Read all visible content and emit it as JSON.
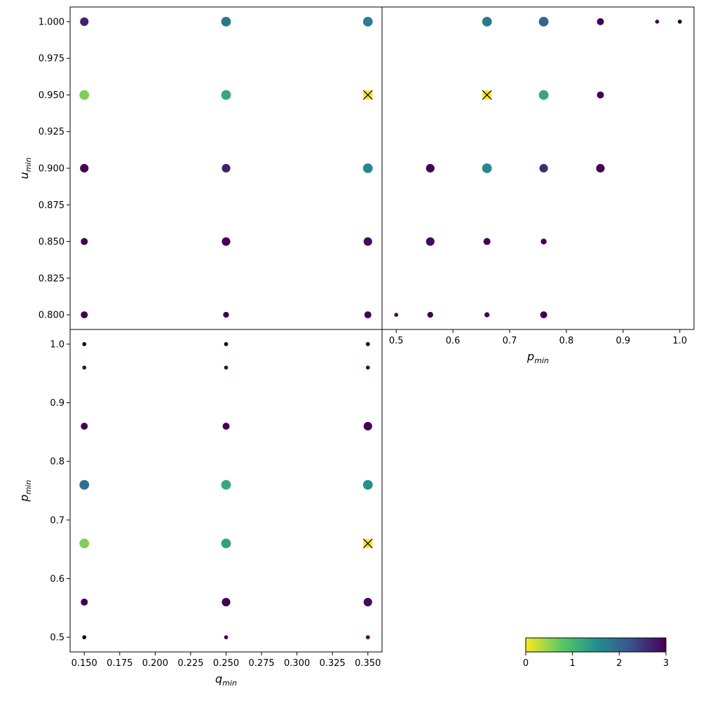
{
  "chart_data": [
    {
      "type": "scatter",
      "panel": "top-left",
      "xlabel": "",
      "ylabel": {
        "base": "u",
        "sub": "min"
      },
      "xlim": [
        0.14,
        0.36
      ],
      "ylim": [
        0.79,
        1.01
      ],
      "xticks": [],
      "yticks": [
        "0.800",
        "0.825",
        "0.850",
        "0.875",
        "0.900",
        "0.925",
        "0.950",
        "0.975",
        "1.000"
      ],
      "points": [
        {
          "x": 0.15,
          "y": 1.0,
          "c": 2.7,
          "s": 1.7
        },
        {
          "x": 0.25,
          "y": 1.0,
          "c": 1.8,
          "s": 2.0
        },
        {
          "x": 0.35,
          "y": 1.0,
          "c": 1.7,
          "s": 2.0
        },
        {
          "x": 0.15,
          "y": 0.95,
          "c": 0.6,
          "s": 2.0
        },
        {
          "x": 0.25,
          "y": 0.95,
          "c": 1.2,
          "s": 2.0
        },
        {
          "x": 0.35,
          "y": 0.95,
          "c": 0.0,
          "s": 2.0,
          "best": true
        },
        {
          "x": 0.15,
          "y": 0.9,
          "c": 3.0,
          "s": 1.7
        },
        {
          "x": 0.25,
          "y": 0.9,
          "c": 2.7,
          "s": 1.7
        },
        {
          "x": 0.35,
          "y": 0.9,
          "c": 1.6,
          "s": 2.0
        },
        {
          "x": 0.15,
          "y": 0.85,
          "c": 3.0,
          "s": 1.3
        },
        {
          "x": 0.25,
          "y": 0.85,
          "c": 3.0,
          "s": 1.7
        },
        {
          "x": 0.35,
          "y": 0.85,
          "c": 2.9,
          "s": 1.7
        },
        {
          "x": 0.15,
          "y": 0.8,
          "c": 3.0,
          "s": 1.3
        },
        {
          "x": 0.25,
          "y": 0.8,
          "c": 3.0,
          "s": 1.0
        },
        {
          "x": 0.35,
          "y": 0.8,
          "c": 3.0,
          "s": 1.3
        }
      ]
    },
    {
      "type": "scatter",
      "panel": "top-right",
      "xlabel": {
        "base": "p",
        "sub": "min"
      },
      "ylabel": "",
      "xlim": [
        0.475,
        1.025
      ],
      "ylim": [
        0.79,
        1.01
      ],
      "xticks": [
        "0.5",
        "0.6",
        "0.7",
        "0.8",
        "0.9",
        "1.0"
      ],
      "yticks": [],
      "points": [
        {
          "x": 0.66,
          "y": 1.0,
          "c": 1.8,
          "s": 2.0
        },
        {
          "x": 0.76,
          "y": 1.0,
          "c": 2.0,
          "s": 2.0
        },
        {
          "x": 0.86,
          "y": 1.0,
          "c": 3.0,
          "s": 1.3
        },
        {
          "x": 0.96,
          "y": 1.0,
          "c": 3.0,
          "s": 0.5
        },
        {
          "x": 1.0,
          "y": 1.0,
          "c": 3.2,
          "s": 0.5
        },
        {
          "x": 0.66,
          "y": 0.95,
          "c": 0.0,
          "s": 2.0,
          "best": true
        },
        {
          "x": 0.76,
          "y": 0.95,
          "c": 1.2,
          "s": 2.0
        },
        {
          "x": 0.86,
          "y": 0.95,
          "c": 3.0,
          "s": 1.3
        },
        {
          "x": 0.56,
          "y": 0.9,
          "c": 3.0,
          "s": 1.7
        },
        {
          "x": 0.66,
          "y": 0.9,
          "c": 1.6,
          "s": 2.0
        },
        {
          "x": 0.76,
          "y": 0.9,
          "c": 2.6,
          "s": 1.7
        },
        {
          "x": 0.86,
          "y": 0.9,
          "c": 3.0,
          "s": 1.7
        },
        {
          "x": 0.56,
          "y": 0.85,
          "c": 2.9,
          "s": 1.7
        },
        {
          "x": 0.66,
          "y": 0.85,
          "c": 3.0,
          "s": 1.3
        },
        {
          "x": 0.76,
          "y": 0.85,
          "c": 3.0,
          "s": 1.0
        },
        {
          "x": 0.5,
          "y": 0.8,
          "c": 3.0,
          "s": 0.5
        },
        {
          "x": 0.56,
          "y": 0.8,
          "c": 3.0,
          "s": 1.0
        },
        {
          "x": 0.66,
          "y": 0.8,
          "c": 3.0,
          "s": 0.8
        },
        {
          "x": 0.76,
          "y": 0.8,
          "c": 3.0,
          "s": 1.3
        }
      ]
    },
    {
      "type": "scatter",
      "panel": "bottom-left",
      "xlabel": {
        "base": "q",
        "sub": "min"
      },
      "ylabel": {
        "base": "p",
        "sub": "min"
      },
      "xlim": [
        0.14,
        0.36
      ],
      "ylim": [
        0.475,
        1.025
      ],
      "xticks": [
        "0.150",
        "0.175",
        "0.200",
        "0.225",
        "0.250",
        "0.275",
        "0.300",
        "0.325",
        "0.350"
      ],
      "yticks": [
        "0.5",
        "0.6",
        "0.7",
        "0.8",
        "0.9",
        "1.0"
      ],
      "points": [
        {
          "x": 0.15,
          "y": 1.0,
          "c": 3.2,
          "s": 0.5
        },
        {
          "x": 0.25,
          "y": 1.0,
          "c": 3.2,
          "s": 0.5
        },
        {
          "x": 0.35,
          "y": 1.0,
          "c": 3.2,
          "s": 0.5
        },
        {
          "x": 0.15,
          "y": 0.96,
          "c": 3.0,
          "s": 0.5
        },
        {
          "x": 0.25,
          "y": 0.96,
          "c": 3.0,
          "s": 0.5
        },
        {
          "x": 0.35,
          "y": 0.96,
          "c": 3.0,
          "s": 0.5
        },
        {
          "x": 0.15,
          "y": 0.86,
          "c": 3.0,
          "s": 1.3
        },
        {
          "x": 0.25,
          "y": 0.86,
          "c": 3.0,
          "s": 1.3
        },
        {
          "x": 0.35,
          "y": 0.86,
          "c": 3.0,
          "s": 1.7
        },
        {
          "x": 0.15,
          "y": 0.76,
          "c": 1.9,
          "s": 2.0
        },
        {
          "x": 0.25,
          "y": 0.76,
          "c": 1.2,
          "s": 2.0
        },
        {
          "x": 0.35,
          "y": 0.76,
          "c": 1.5,
          "s": 2.0
        },
        {
          "x": 0.15,
          "y": 0.66,
          "c": 0.6,
          "s": 2.0
        },
        {
          "x": 0.25,
          "y": 0.66,
          "c": 1.3,
          "s": 2.0
        },
        {
          "x": 0.35,
          "y": 0.66,
          "c": 0.0,
          "s": 2.0,
          "best": true
        },
        {
          "x": 0.15,
          "y": 0.56,
          "c": 3.0,
          "s": 1.3
        },
        {
          "x": 0.25,
          "y": 0.56,
          "c": 3.0,
          "s": 1.7
        },
        {
          "x": 0.35,
          "y": 0.56,
          "c": 2.9,
          "s": 1.7
        },
        {
          "x": 0.15,
          "y": 0.5,
          "c": 3.2,
          "s": 0.5
        },
        {
          "x": 0.25,
          "y": 0.5,
          "c": 3.0,
          "s": 0.5
        },
        {
          "x": 0.35,
          "y": 0.5,
          "c": 3.0,
          "s": 0.5
        }
      ]
    }
  ],
  "colorbar": {
    "range": [
      0,
      3
    ],
    "ticks": [
      "0",
      "1",
      "2",
      "3"
    ],
    "colors": [
      "#fde725",
      "#5ec962",
      "#21918c",
      "#3b528b",
      "#440154"
    ]
  },
  "marker": {
    "best_symbol": "×"
  }
}
